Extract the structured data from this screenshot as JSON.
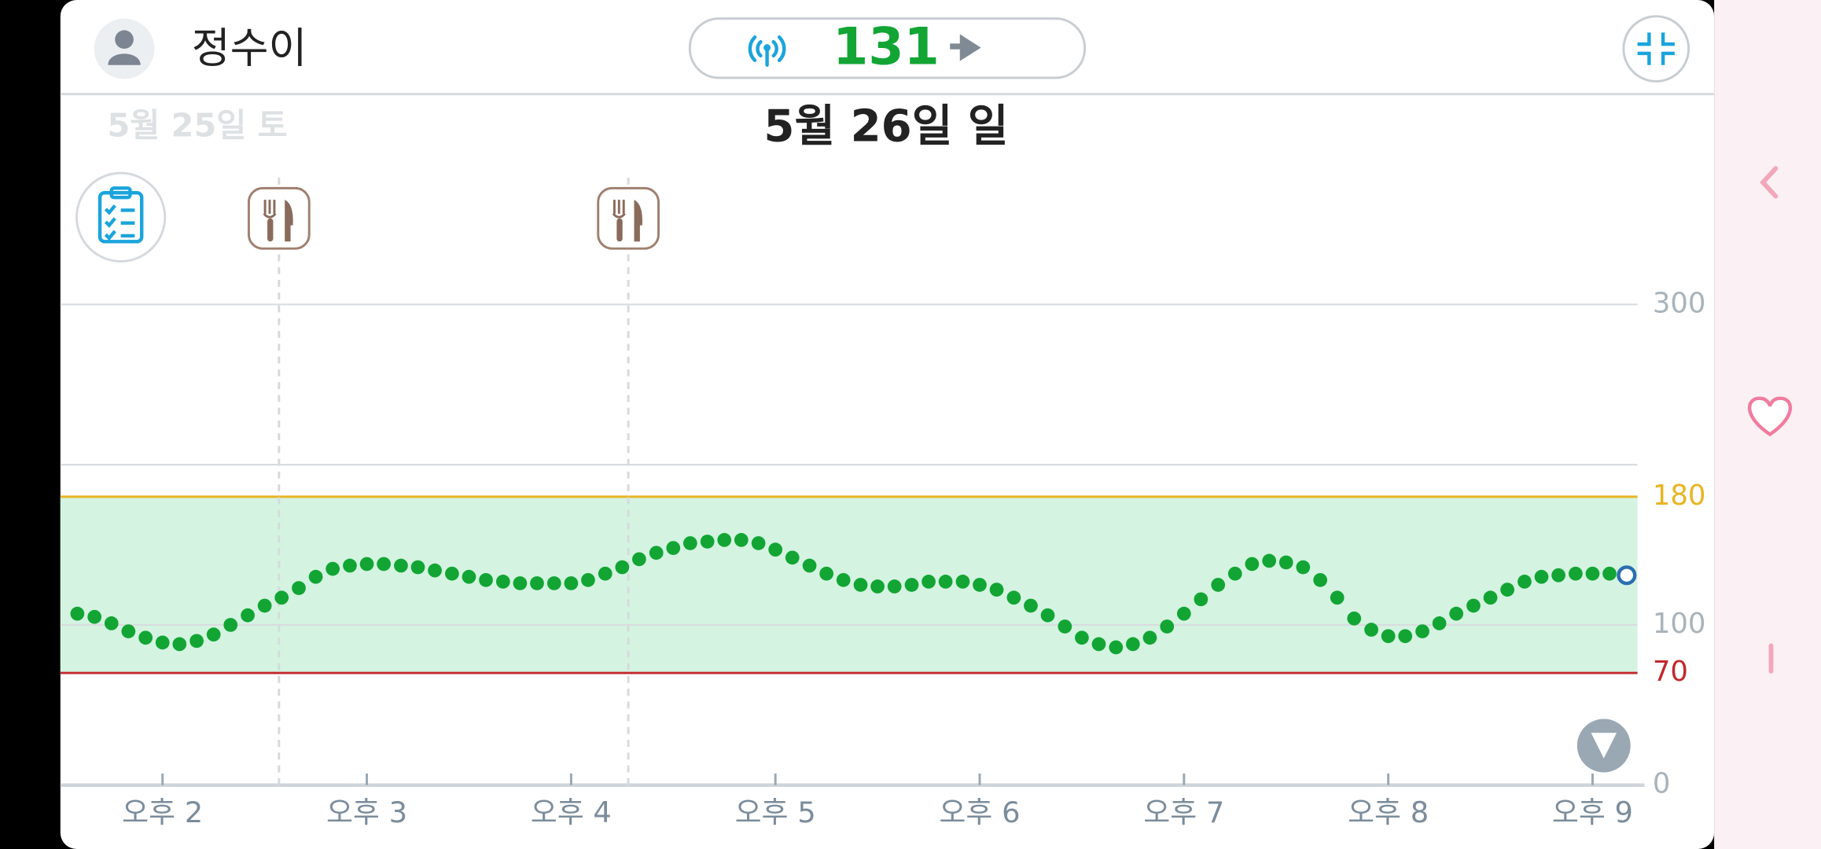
{
  "header": {
    "user_name": "정수이",
    "current_value": 131
  },
  "dates": {
    "previous": "5월 25일 토",
    "current": "5월 26일 일"
  },
  "chart_data": {
    "type": "scatter",
    "xlim": [
      13.5,
      21.22
    ],
    "ylim": [
      0,
      390
    ],
    "xticks": [
      {
        "value": 14,
        "label": "오후 2"
      },
      {
        "value": 15,
        "label": "오후 3"
      },
      {
        "value": 16,
        "label": "오후 4"
      },
      {
        "value": 17,
        "label": "오후 5"
      },
      {
        "value": 18,
        "label": "오후 6"
      },
      {
        "value": 19,
        "label": "오후 7"
      },
      {
        "value": 20,
        "label": "오후 8"
      },
      {
        "value": 21,
        "label": "오후 9"
      }
    ],
    "yticks": [
      0,
      100,
      300
    ],
    "gridlines": [
      100,
      200,
      300
    ],
    "target_range": {
      "low": 70,
      "high": 180,
      "low_color": "#c0282d",
      "high_color": "#e8b422",
      "fill": "#d4f3e1"
    },
    "meal_events": [
      14.57,
      16.28
    ],
    "color": "#12a534",
    "last_point_color": "#2a6fb0",
    "x": [
      13.583,
      13.667,
      13.75,
      13.833,
      13.917,
      14,
      14.083,
      14.167,
      14.25,
      14.333,
      14.417,
      14.5,
      14.583,
      14.667,
      14.75,
      14.833,
      14.917,
      15,
      15.083,
      15.167,
      15.25,
      15.333,
      15.417,
      15.5,
      15.583,
      15.667,
      15.75,
      15.833,
      15.917,
      16,
      16.083,
      16.167,
      16.25,
      16.333,
      16.417,
      16.5,
      16.583,
      16.667,
      16.75,
      16.833,
      16.917,
      17,
      17.083,
      17.167,
      17.25,
      17.333,
      17.417,
      17.5,
      17.583,
      17.667,
      17.75,
      17.833,
      17.917,
      18,
      18.083,
      18.167,
      18.25,
      18.333,
      18.417,
      18.5,
      18.583,
      18.667,
      18.75,
      18.833,
      18.917,
      19,
      19.083,
      19.167,
      19.25,
      19.333,
      19.417,
      19.5,
      19.583,
      19.667,
      19.75,
      19.833,
      19.917,
      20,
      20.083,
      20.167,
      20.25,
      20.333,
      20.417,
      20.5,
      20.583,
      20.667,
      20.75,
      20.833,
      20.917,
      21,
      21.083,
      21.167
    ],
    "values": [
      107,
      105,
      101,
      96,
      92,
      89,
      88,
      90,
      94,
      100,
      106,
      112,
      117,
      123,
      130,
      135,
      137,
      138,
      138,
      137,
      136,
      134,
      132,
      130,
      128,
      127,
      126,
      126,
      126,
      126,
      128,
      132,
      136,
      141,
      145,
      148,
      151,
      152,
      153,
      153,
      151,
      147,
      142,
      137,
      132,
      128,
      125,
      124,
      124,
      125,
      127,
      127,
      127,
      125,
      122,
      117,
      112,
      106,
      99,
      92,
      88,
      86,
      88,
      92,
      99,
      107,
      116,
      125,
      132,
      138,
      140,
      139,
      136,
      128,
      117,
      104,
      97,
      93,
      93,
      96,
      101,
      107,
      112,
      117,
      122,
      127,
      130,
      131,
      132,
      132,
      132,
      131
    ]
  }
}
